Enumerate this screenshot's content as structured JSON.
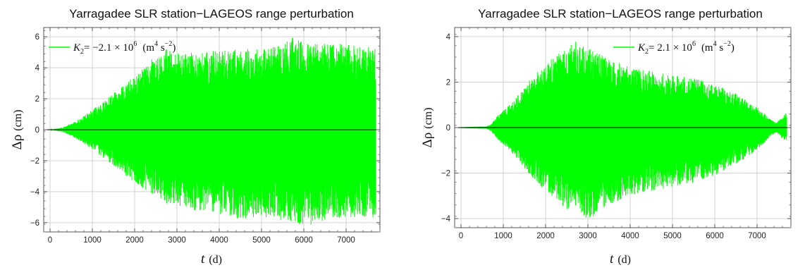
{
  "chart_data": [
    {
      "type": "line",
      "title": "Yarragadee SLR station−LAGEOS range perturbation",
      "xlabel_symbol": "t",
      "xlabel_unit": "(d)",
      "ylabel_symbol": "Δρ",
      "ylabel_unit": "(cm)",
      "xlim": [
        -150,
        7800
      ],
      "ylim": [
        -6.6,
        6.6
      ],
      "xticks": [
        0,
        1000,
        2000,
        3000,
        4000,
        5000,
        6000,
        7000
      ],
      "yticks": [
        -6,
        -4,
        -2,
        0,
        2,
        4,
        6
      ],
      "xtick_labels": [
        "0",
        "1000",
        "2000",
        "3000",
        "4000",
        "5000",
        "6000",
        "7000"
      ],
      "ytick_labels": [
        "−6",
        "−4",
        "−2",
        "0",
        "2",
        "4",
        "6"
      ],
      "grid": true,
      "legend_position": "top-left",
      "series_color": "#00ff00",
      "series": [
        {
          "legend_symbol": "K",
          "legend_sub": "2",
          "legend_value": "= −2.1 × 10",
          "legend_exp": "6",
          "legend_unit_open": "(m",
          "legend_unit_exp1": "4",
          "legend_unit_mid": " s",
          "legend_unit_exp2": "−2",
          "legend_unit_close": ")",
          "x": [
            0,
            300,
            500,
            700,
            1000,
            1300,
            1600,
            2000,
            2300,
            2400,
            2500,
            2750,
            3000,
            3300,
            3400,
            3600,
            4000,
            4500,
            5000,
            5500,
            5700,
            6000,
            6300,
            6650,
            7000,
            7400,
            7700
          ],
          "upper": [
            0.0,
            0.15,
            0.4,
            0.7,
            1.3,
            1.9,
            2.6,
            3.5,
            4.2,
            4.6,
            4.6,
            5.2,
            5.0,
            4.9,
            5.1,
            5.0,
            5.2,
            5.2,
            5.3,
            5.5,
            6.1,
            5.6,
            5.7,
            5.6,
            5.5,
            5.5,
            5.2
          ],
          "lower": [
            0.0,
            -0.15,
            -0.4,
            -0.7,
            -1.3,
            -1.9,
            -2.6,
            -3.4,
            -4.0,
            -4.2,
            -4.2,
            -4.8,
            -5.0,
            -5.1,
            -5.2,
            -5.2,
            -5.5,
            -5.8,
            -5.6,
            -6.0,
            -5.9,
            -6.3,
            -6.0,
            -5.7,
            -5.7,
            -5.6,
            -5.7
          ],
          "dips_x": [
            2420,
            3340,
            6650
          ],
          "dips_y": [
            -1.2,
            -0.9,
            -1.3
          ]
        }
      ]
    },
    {
      "type": "line",
      "title": "Yarragadee SLR station−LAGEOS range perturbation",
      "xlabel_symbol": "t",
      "xlabel_unit": "(d)",
      "ylabel_symbol": "Δρ",
      "ylabel_unit": "(cm)",
      "xlim": [
        -150,
        7800
      ],
      "ylim": [
        -4.4,
        4.4
      ],
      "xticks": [
        0,
        1000,
        2000,
        3000,
        4000,
        5000,
        6000,
        7000
      ],
      "yticks": [
        -4,
        -2,
        0,
        2,
        4
      ],
      "xtick_labels": [
        "0",
        "1000",
        "2000",
        "3000",
        "4000",
        "5000",
        "6000",
        "7000"
      ],
      "ytick_labels": [
        "−4",
        "−2",
        "0",
        "2",
        "4"
      ],
      "grid": true,
      "legend_position": "top-right",
      "series_color": "#00ff00",
      "series": [
        {
          "legend_symbol": "K",
          "legend_sub": "2",
          "legend_value": "= 2.1 × 10",
          "legend_exp": "6",
          "legend_unit_open": "(m",
          "legend_unit_exp1": "4",
          "legend_unit_mid": " s",
          "legend_unit_exp2": "−2",
          "legend_unit_close": ")",
          "x": [
            0,
            300,
            600,
            700,
            900,
            1200,
            1500,
            1800,
            2200,
            2500,
            2750,
            3000,
            3300,
            3600,
            4000,
            4500,
            5000,
            5500,
            6000,
            6500,
            7000,
            7300,
            7450,
            7600,
            7700
          ],
          "upper": [
            0.02,
            0.04,
            0.05,
            0.15,
            0.6,
            1.1,
            1.8,
            2.5,
            3.1,
            3.5,
            3.9,
            3.6,
            3.2,
            2.9,
            2.7,
            2.5,
            2.3,
            2.2,
            1.9,
            1.5,
            0.9,
            0.4,
            0.2,
            0.5,
            0.7
          ],
          "lower": [
            -0.02,
            -0.04,
            -0.05,
            -0.15,
            -0.6,
            -1.1,
            -1.8,
            -2.5,
            -3.1,
            -3.6,
            -3.8,
            -4.1,
            -3.7,
            -3.3,
            -3.0,
            -2.8,
            -2.6,
            -2.4,
            -2.1,
            -1.6,
            -1.0,
            -0.4,
            -0.2,
            -0.5,
            -0.6
          ],
          "dips_x": [
            2420,
            3340,
            6650
          ],
          "dips_y": [
            -0.8,
            -0.5,
            -0.7
          ]
        }
      ]
    }
  ]
}
